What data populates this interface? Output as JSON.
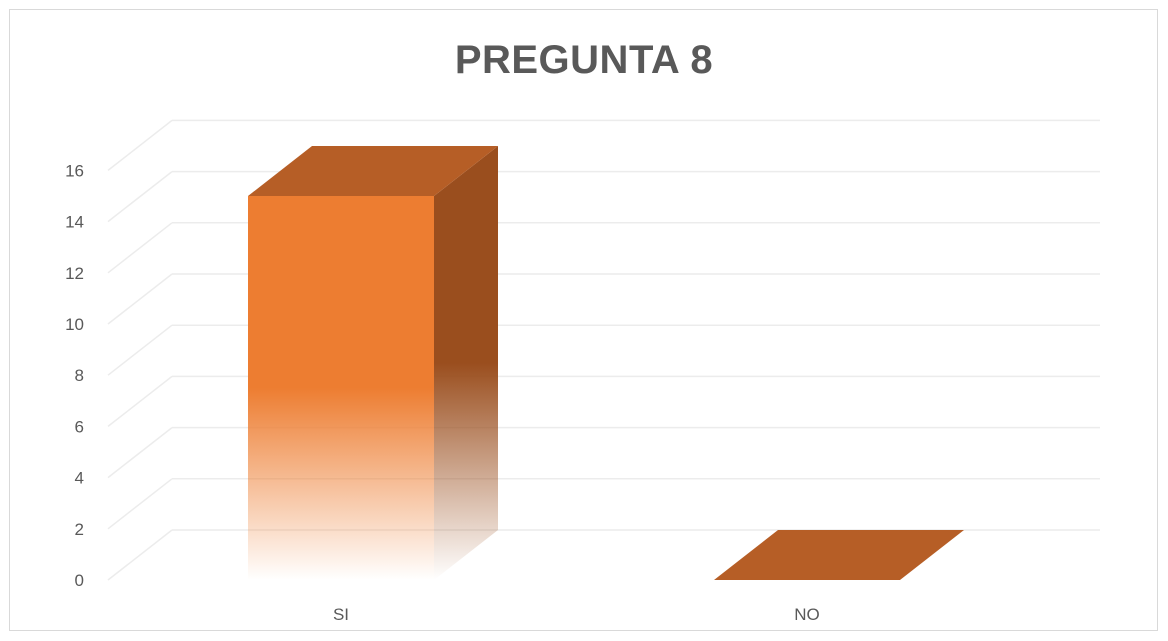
{
  "chart_data": {
    "type": "bar",
    "title": "PREGUNTA 8",
    "categories": [
      "SI",
      "NO"
    ],
    "values": [
      15,
      0
    ],
    "xlabel": "",
    "ylabel": "",
    "ylim": [
      0,
      16
    ],
    "yticks": [
      0,
      2,
      4,
      6,
      8,
      10,
      12,
      14,
      16
    ],
    "grid": true,
    "legend": "none",
    "style": "3d-column",
    "colors": {
      "front": "#ed7d31",
      "side": "#9a4e1e",
      "top": "#b65e26",
      "grid": "#ececec",
      "text": "#595959"
    }
  }
}
